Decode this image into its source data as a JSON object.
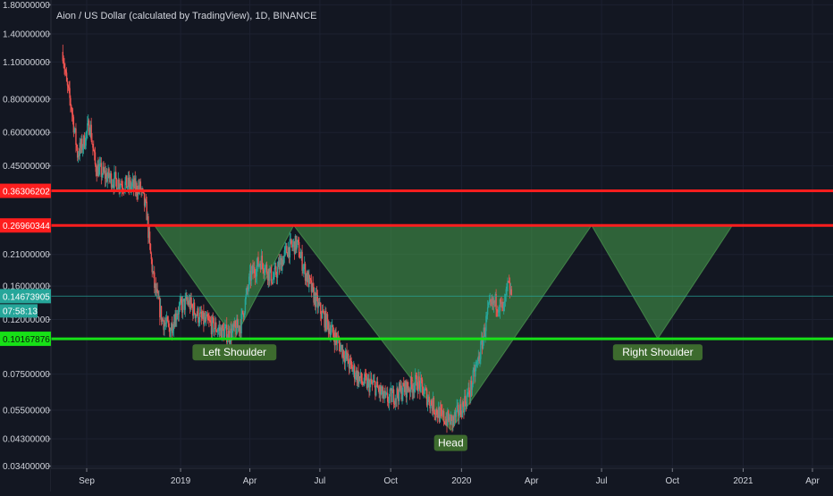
{
  "colors": {
    "background": "#131722",
    "grid": "#1c2130",
    "axis_text": "#d1d4dc",
    "up": "#26a69a",
    "down": "#ef5350",
    "resistance": "#ff1e1e",
    "support": "#17e017",
    "pattern_fill": "#4caf50",
    "label_bg": "#3d6b2e",
    "current_price": "#26a69a"
  },
  "chart_data": {
    "type": "candlestick",
    "title": "Aion / US Dollar (calculated by TradingView), 1D, BINANCE",
    "y_scale": "log",
    "ylim": [
      0.034,
      1.8
    ],
    "y_ticks": [
      {
        "v": 1.8,
        "label": "1.80000000"
      },
      {
        "v": 1.4,
        "label": "1.40000000"
      },
      {
        "v": 1.1,
        "label": "1.10000000"
      },
      {
        "v": 0.8,
        "label": "0.80000000"
      },
      {
        "v": 0.6,
        "label": "0.60000000"
      },
      {
        "v": 0.45,
        "label": "0.45000000"
      },
      {
        "v": 0.21,
        "label": "0.21000000"
      },
      {
        "v": 0.16,
        "label": "0.16000000"
      },
      {
        "v": 0.12,
        "label": "0.12000000"
      },
      {
        "v": 0.075,
        "label": "0.07500000"
      },
      {
        "v": 0.055,
        "label": "0.05500000"
      },
      {
        "v": 0.043,
        "label": "0.04300000"
      },
      {
        "v": 0.034,
        "label": "0.03400000"
      }
    ],
    "x_ticks": [
      {
        "date": "2018-09-01",
        "label": "Sep"
      },
      {
        "date": "2019-01-01",
        "label": "2019"
      },
      {
        "date": "2019-04-01",
        "label": "Apr"
      },
      {
        "date": "2019-07-01",
        "label": "Jul"
      },
      {
        "date": "2019-10-01",
        "label": "Oct"
      },
      {
        "date": "2020-01-01",
        "label": "2020"
      },
      {
        "date": "2020-04-01",
        "label": "Apr"
      },
      {
        "date": "2020-07-01",
        "label": "Jul"
      },
      {
        "date": "2020-10-01",
        "label": "Oct"
      },
      {
        "date": "2021-01-01",
        "label": "2021"
      },
      {
        "date": "2021-04-01",
        "label": "Apr"
      }
    ],
    "price_path": [
      [
        "2018-08-01",
        1.2
      ],
      [
        "2018-08-06",
        0.9
      ],
      [
        "2018-08-12",
        0.75
      ],
      [
        "2018-08-20",
        0.5
      ],
      [
        "2018-08-28",
        0.55
      ],
      [
        "2018-09-05",
        0.65
      ],
      [
        "2018-09-12",
        0.45
      ],
      [
        "2018-09-22",
        0.42
      ],
      [
        "2018-10-05",
        0.4
      ],
      [
        "2018-10-25",
        0.38
      ],
      [
        "2018-11-10",
        0.37
      ],
      [
        "2018-11-18",
        0.3
      ],
      [
        "2018-11-22",
        0.22
      ],
      [
        "2018-11-28",
        0.16
      ],
      [
        "2018-12-08",
        0.12
      ],
      [
        "2018-12-18",
        0.11
      ],
      [
        "2018-12-28",
        0.13
      ],
      [
        "2019-01-10",
        0.14
      ],
      [
        "2019-01-28",
        0.12
      ],
      [
        "2019-02-15",
        0.112
      ],
      [
        "2019-03-05",
        0.105
      ],
      [
        "2019-03-20",
        0.115
      ],
      [
        "2019-04-02",
        0.175
      ],
      [
        "2019-04-15",
        0.2
      ],
      [
        "2019-05-01",
        0.17
      ],
      [
        "2019-05-20",
        0.22
      ],
      [
        "2019-06-01",
        0.23
      ],
      [
        "2019-06-12",
        0.18
      ],
      [
        "2019-06-22",
        0.15
      ],
      [
        "2019-07-01",
        0.13
      ],
      [
        "2019-07-15",
        0.11
      ],
      [
        "2019-07-28",
        0.095
      ],
      [
        "2019-08-10",
        0.08
      ],
      [
        "2019-08-25",
        0.07
      ],
      [
        "2019-09-10",
        0.068
      ],
      [
        "2019-09-25",
        0.06
      ],
      [
        "2019-10-15",
        0.065
      ],
      [
        "2019-11-05",
        0.07
      ],
      [
        "2019-11-20",
        0.06
      ],
      [
        "2019-12-05",
        0.052
      ],
      [
        "2019-12-20",
        0.05
      ],
      [
        "2020-01-01",
        0.056
      ],
      [
        "2020-01-12",
        0.065
      ],
      [
        "2020-01-25",
        0.09
      ],
      [
        "2020-02-05",
        0.13
      ],
      [
        "2020-02-15",
        0.14
      ],
      [
        "2020-02-25",
        0.13
      ],
      [
        "2020-03-01",
        0.16
      ],
      [
        "2020-03-06",
        0.15
      ]
    ],
    "horizontal_lines": [
      {
        "name": "resistance-upper",
        "value": 0.36306202,
        "label": "0.36306202",
        "color": "#ff1e1e"
      },
      {
        "name": "resistance-lower",
        "value": 0.26960344,
        "label": "0.26960344",
        "color": "#ff1e1e"
      },
      {
        "name": "current-price",
        "value": 0.14673905,
        "label": "0.14673905",
        "color": "#26a69a"
      },
      {
        "name": "support",
        "value": 0.10167876,
        "label": "0.10167876",
        "color": "#17e017"
      }
    ],
    "current_price_timer": "07:58:13",
    "pattern_triangles": [
      {
        "name": "left-shoulder-triangle",
        "points": [
          [
            "2018-11-28",
            0.2696
          ],
          [
            "2019-05-28",
            0.2696
          ],
          [
            "2019-03-12",
            0.1017
          ]
        ]
      },
      {
        "name": "head-triangle",
        "points": [
          [
            "2019-05-28",
            0.2696
          ],
          [
            "2020-06-18",
            0.2696
          ],
          [
            "2019-12-18",
            0.0462
          ]
        ]
      },
      {
        "name": "right-shoulder-triangle",
        "points": [
          [
            "2020-06-18",
            0.2696
          ],
          [
            "2020-12-18",
            0.2696
          ],
          [
            "2020-09-12",
            0.1017
          ]
        ]
      }
    ],
    "annotations": [
      {
        "name": "left-shoulder-label",
        "text": "Left Shoulder",
        "date": "2019-03-12",
        "value": 0.0905
      },
      {
        "name": "head-label",
        "text": "Head",
        "date": "2019-12-18",
        "value": 0.0415
      },
      {
        "name": "right-shoulder-label",
        "text": "Right Shoulder",
        "date": "2020-09-12",
        "value": 0.0905
      }
    ]
  }
}
